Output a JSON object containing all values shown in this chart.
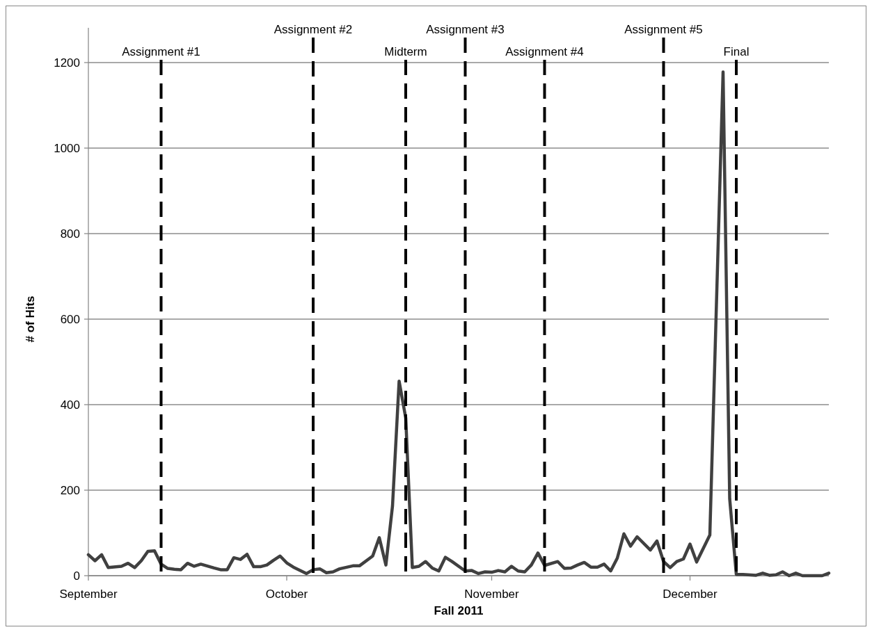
{
  "chart_data": {
    "type": "line",
    "xlabel": "Fall 2011",
    "ylabel": "# of Hits",
    "xlim": [
      "2011-09-01",
      "2011-12-22"
    ],
    "xticks": [
      {
        "value": "2011-09-01",
        "label": "September"
      },
      {
        "value": "2011-10-01",
        "label": "October"
      },
      {
        "value": "2011-11-01",
        "label": "November"
      },
      {
        "value": "2011-12-01",
        "label": "December"
      }
    ],
    "ylim": [
      0,
      1200
    ],
    "yticks": [
      0,
      200,
      400,
      600,
      800,
      1000,
      1200
    ],
    "grid": "y",
    "series": [
      {
        "color": "#404040",
        "x": [
          "2011-09-01",
          "2011-09-02",
          "2011-09-03",
          "2011-09-04",
          "2011-09-06",
          "2011-09-07",
          "2011-09-08",
          "2011-09-09",
          "2011-09-10",
          "2011-09-11",
          "2011-09-12",
          "2011-09-13",
          "2011-09-14",
          "2011-09-15",
          "2011-09-16",
          "2011-09-17",
          "2011-09-18",
          "2011-09-20",
          "2011-09-21",
          "2011-09-22",
          "2011-09-23",
          "2011-09-24",
          "2011-09-25",
          "2011-09-26",
          "2011-09-27",
          "2011-09-28",
          "2011-09-29",
          "2011-09-30",
          "2011-10-01",
          "2011-10-02",
          "2011-10-04",
          "2011-10-05",
          "2011-10-06",
          "2011-10-07",
          "2011-10-08",
          "2011-10-09",
          "2011-10-11",
          "2011-10-12",
          "2011-10-14",
          "2011-10-15",
          "2011-10-16",
          "2011-10-17",
          "2011-10-18",
          "2011-10-19",
          "2011-10-20",
          "2011-10-21",
          "2011-10-22",
          "2011-10-23",
          "2011-10-24",
          "2011-10-25",
          "2011-10-26",
          "2011-10-28",
          "2011-10-29",
          "2011-10-30",
          "2011-10-31",
          "2011-11-01",
          "2011-11-02",
          "2011-11-03",
          "2011-11-04",
          "2011-11-05",
          "2011-11-06",
          "2011-11-07",
          "2011-11-08",
          "2011-11-09",
          "2011-11-11",
          "2011-11-12",
          "2011-11-13",
          "2011-11-14",
          "2011-11-15",
          "2011-11-16",
          "2011-11-17",
          "2011-11-18",
          "2011-11-19",
          "2011-11-20",
          "2011-11-21",
          "2011-11-22",
          "2011-11-23",
          "2011-11-25",
          "2011-11-26",
          "2011-11-27",
          "2011-11-28",
          "2011-11-29",
          "2011-11-30",
          "2011-12-01",
          "2011-12-02",
          "2011-12-04",
          "2011-12-06",
          "2011-12-07",
          "2011-12-08",
          "2011-12-09",
          "2011-12-11",
          "2011-12-12",
          "2011-12-13",
          "2011-12-14",
          "2011-12-15",
          "2011-12-16",
          "2011-12-17",
          "2011-12-18",
          "2011-12-19",
          "2011-12-20",
          "2011-12-21",
          "2011-12-22"
        ],
        "values": [
          49,
          35,
          49,
          19,
          22,
          29,
          19,
          35,
          57,
          58,
          27,
          17,
          15,
          14,
          29,
          22,
          27,
          18,
          14,
          14,
          42,
          38,
          50,
          21,
          21,
          25,
          36,
          46,
          30,
          20,
          5,
          14,
          16,
          7,
          9,
          16,
          23,
          23,
          46,
          89,
          25,
          163,
          455,
          369,
          19,
          22,
          33,
          18,
          11,
          43,
          33,
          11,
          12,
          5,
          9,
          8,
          12,
          9,
          22,
          11,
          9,
          25,
          53,
          24,
          33,
          17,
          18,
          25,
          31,
          20,
          20,
          27,
          11,
          41,
          98,
          69,
          91,
          60,
          81,
          33,
          19,
          33,
          39,
          74,
          32,
          95,
          1178,
          180,
          3,
          3,
          1,
          6,
          1,
          2,
          9,
          0,
          6,
          0,
          0,
          0,
          0,
          6
        ]
      }
    ],
    "ref_lines": [
      {
        "axis": "x",
        "value": "2011-09-12",
        "label": "Assignment #1",
        "color": "#000000",
        "line_style": "dashed"
      },
      {
        "axis": "x",
        "value": "2011-10-05",
        "label": "Assignment #2",
        "color": "#000000",
        "line_style": "dashed"
      },
      {
        "axis": "x",
        "value": "2011-10-19",
        "label": "Midterm",
        "color": "#000000",
        "line_style": "dashed"
      },
      {
        "axis": "x",
        "value": "2011-10-28",
        "label": "Assignment #3",
        "color": "#000000",
        "line_style": "dashed"
      },
      {
        "axis": "x",
        "value": "2011-11-09",
        "label": "Assignment #4",
        "color": "#000000",
        "line_style": "dashed"
      },
      {
        "axis": "x",
        "value": "2011-11-27",
        "label": "Assignment #5",
        "color": "#000000",
        "line_style": "dashed"
      },
      {
        "axis": "x",
        "value": "2011-12-08",
        "label": "Final",
        "color": "#000000",
        "line_style": "dashed"
      }
    ]
  }
}
